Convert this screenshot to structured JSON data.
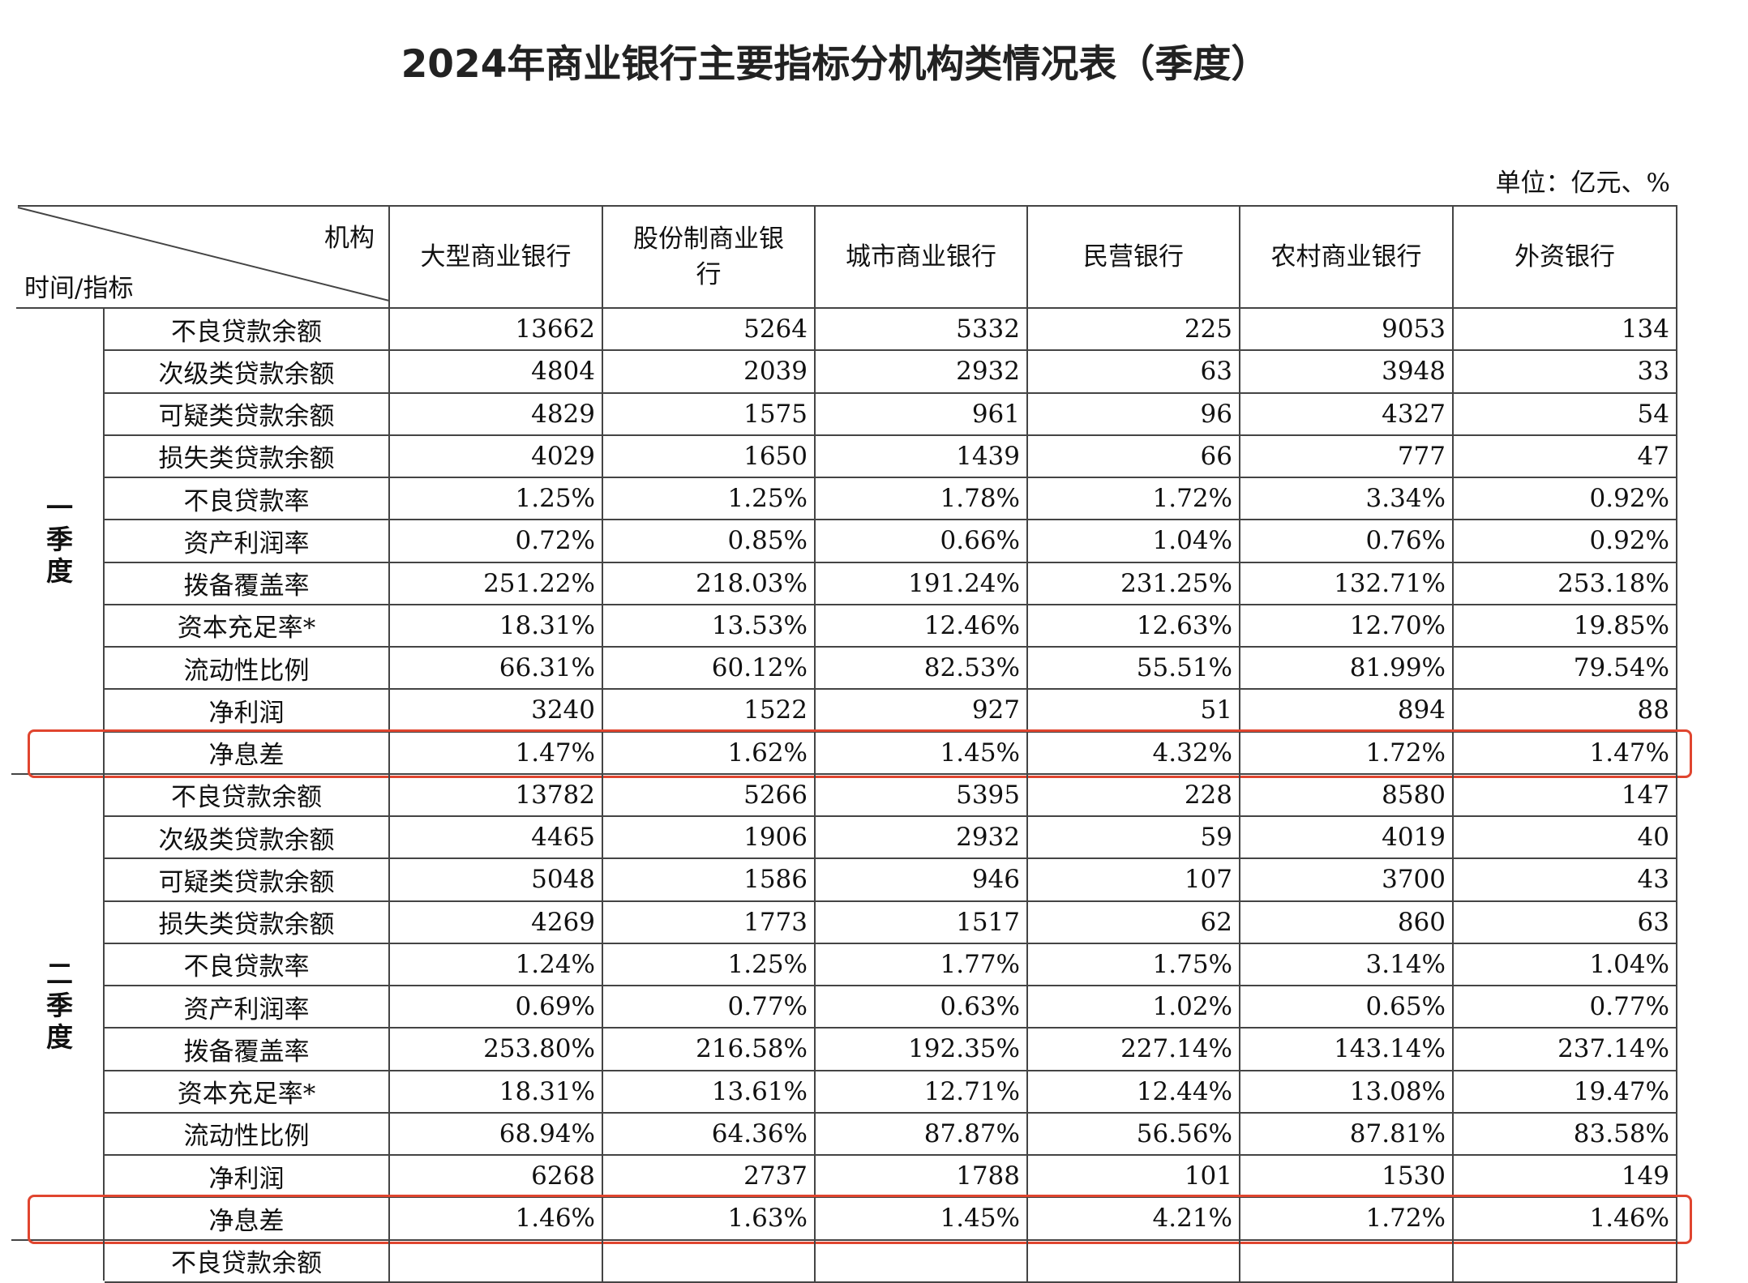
{
  "title": "2024年商业银行主要指标分机构类情况表（季度）",
  "unit": "单位：亿元、%",
  "table": {
    "corner_top": "机构",
    "corner_bottom": "时间/指标",
    "columns": [
      "大型商业银行",
      "股份制商业银行",
      "城市商业银行",
      "民营银行",
      "农村商业银行",
      "外资银行"
    ],
    "quarters": [
      {
        "label": "一季度",
        "rows": [
          {
            "label": "不良贷款余额",
            "values": [
              "13662",
              "5264",
              "5332",
              "225",
              "9053",
              "134"
            ]
          },
          {
            "label": "次级类贷款余额",
            "values": [
              "4804",
              "2039",
              "2932",
              "63",
              "3948",
              "33"
            ]
          },
          {
            "label": "可疑类贷款余额",
            "values": [
              "4829",
              "1575",
              "961",
              "96",
              "4327",
              "54"
            ]
          },
          {
            "label": "损失类贷款余额",
            "values": [
              "4029",
              "1650",
              "1439",
              "66",
              "777",
              "47"
            ]
          },
          {
            "label": "不良贷款率",
            "values": [
              "1.25%",
              "1.25%",
              "1.78%",
              "1.72%",
              "3.34%",
              "0.92%"
            ]
          },
          {
            "label": "资产利润率",
            "values": [
              "0.72%",
              "0.85%",
              "0.66%",
              "1.04%",
              "0.76%",
              "0.92%"
            ]
          },
          {
            "label": "拨备覆盖率",
            "values": [
              "251.22%",
              "218.03%",
              "191.24%",
              "231.25%",
              "132.71%",
              "253.18%"
            ]
          },
          {
            "label": "资本充足率*",
            "values": [
              "18.31%",
              "13.53%",
              "12.46%",
              "12.63%",
              "12.70%",
              "19.85%"
            ]
          },
          {
            "label": "流动性比例",
            "values": [
              "66.31%",
              "60.12%",
              "82.53%",
              "55.51%",
              "81.99%",
              "79.54%"
            ]
          },
          {
            "label": "净利润",
            "values": [
              "3240",
              "1522",
              "927",
              "51",
              "894",
              "88"
            ]
          },
          {
            "label": "净息差",
            "values": [
              "1.47%",
              "1.62%",
              "1.45%",
              "4.32%",
              "1.72%",
              "1.47%"
            ]
          }
        ]
      },
      {
        "label": "二季度",
        "rows": [
          {
            "label": "不良贷款余额",
            "values": [
              "13782",
              "5266",
              "5395",
              "228",
              "8580",
              "147"
            ]
          },
          {
            "label": "次级类贷款余额",
            "values": [
              "4465",
              "1906",
              "2932",
              "59",
              "4019",
              "40"
            ]
          },
          {
            "label": "可疑类贷款余额",
            "values": [
              "5048",
              "1586",
              "946",
              "107",
              "3700",
              "43"
            ]
          },
          {
            "label": "损失类贷款余额",
            "values": [
              "4269",
              "1773",
              "1517",
              "62",
              "860",
              "63"
            ]
          },
          {
            "label": "不良贷款率",
            "values": [
              "1.24%",
              "1.25%",
              "1.77%",
              "1.75%",
              "3.14%",
              "1.04%"
            ]
          },
          {
            "label": "资产利润率",
            "values": [
              "0.69%",
              "0.77%",
              "0.63%",
              "1.02%",
              "0.65%",
              "0.77%"
            ]
          },
          {
            "label": "拨备覆盖率",
            "values": [
              "253.80%",
              "216.58%",
              "192.35%",
              "227.14%",
              "143.14%",
              "237.14%"
            ]
          },
          {
            "label": "资本充足率*",
            "values": [
              "18.31%",
              "13.61%",
              "12.71%",
              "12.44%",
              "13.08%",
              "19.47%"
            ]
          },
          {
            "label": "流动性比例",
            "values": [
              "68.94%",
              "64.36%",
              "87.87%",
              "56.56%",
              "87.81%",
              "83.58%"
            ]
          },
          {
            "label": "净利润",
            "values": [
              "6268",
              "2737",
              "1788",
              "101",
              "1530",
              "149"
            ]
          },
          {
            "label": "净息差",
            "values": [
              "1.46%",
              "1.63%",
              "1.45%",
              "4.21%",
              "1.72%",
              "1.46%"
            ]
          }
        ]
      }
    ],
    "partial_row": {
      "label": "不良贷款余额"
    }
  }
}
